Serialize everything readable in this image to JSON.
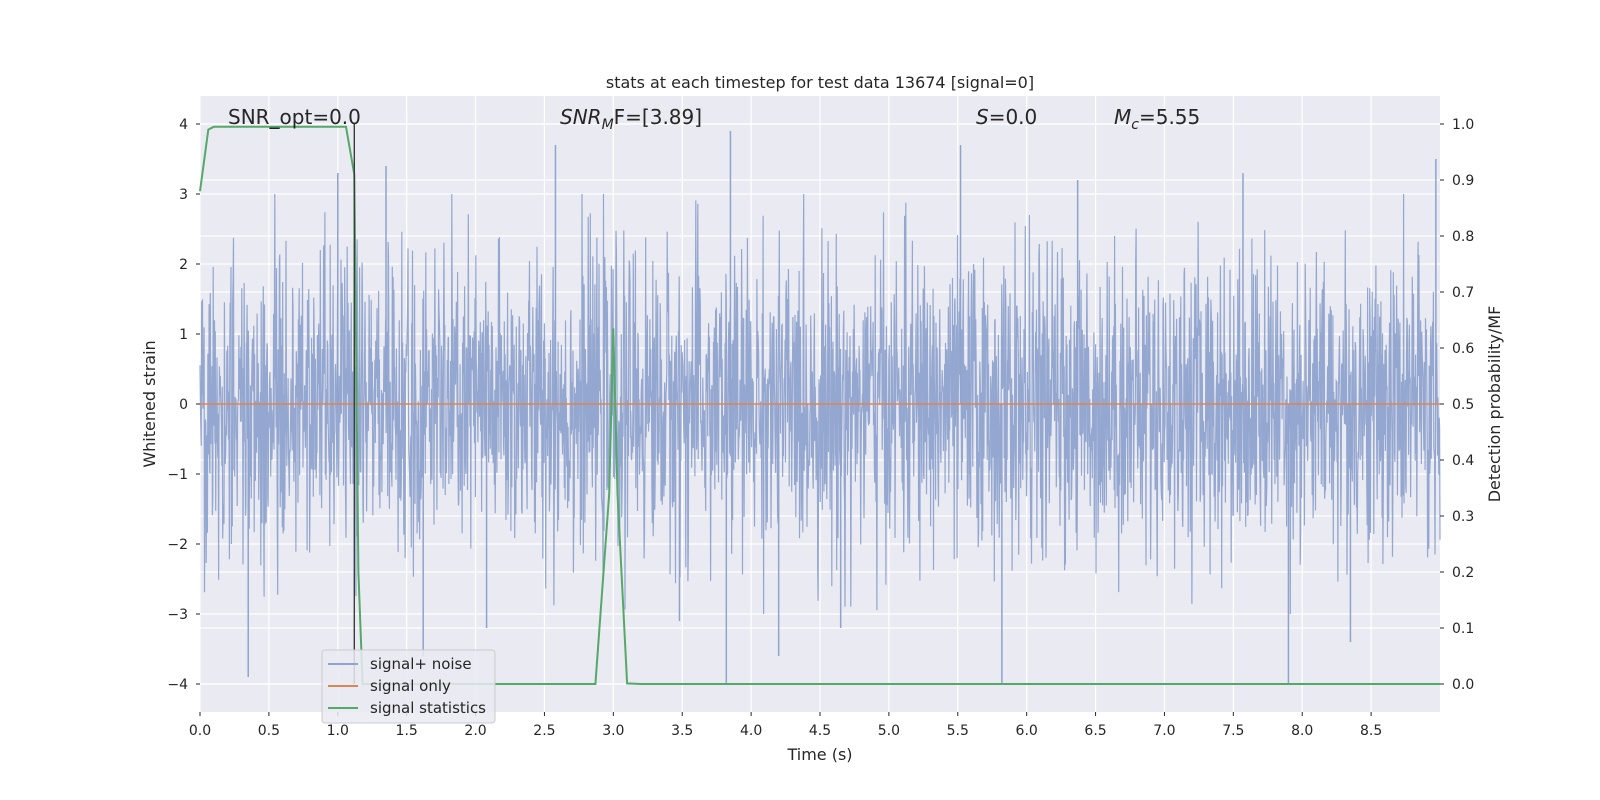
{
  "chart_data": {
    "type": "line",
    "title": "stats at each timestep for test data 13674 [signal=0]",
    "xlabel": "Time (s)",
    "ylabel_left": "Whitened strain",
    "ylabel_right": "Detection probability/MF",
    "xlim": [
      0.0,
      9.0
    ],
    "ylim_left": [
      -4.4,
      4.4
    ],
    "ylim_right": [
      -0.05,
      1.05
    ],
    "grid": true,
    "xticks": [
      "0.0",
      "0.5",
      "1.0",
      "1.5",
      "2.0",
      "2.5",
      "3.0",
      "3.5",
      "4.0",
      "4.5",
      "5.0",
      "5.5",
      "6.0",
      "6.5",
      "7.0",
      "7.5",
      "8.0",
      "8.5"
    ],
    "yticks_left": [
      "−4",
      "−3",
      "−2",
      "−1",
      "0",
      "1",
      "2",
      "3",
      "4"
    ],
    "yticks_right": [
      "0.0",
      "0.1",
      "0.2",
      "0.3",
      "0.4",
      "0.5",
      "0.6",
      "0.7",
      "0.8",
      "0.9",
      "1.0"
    ],
    "annotations": {
      "snr_opt": "SNR_opt=0.0",
      "snr_mf_sym": "SNR",
      "snr_mf_sub": "M",
      "snr_mf_rest": "F=[3.89]",
      "s_sym": "S",
      "s_rest": "=0.0",
      "mc_sym": "M",
      "mc_sub": "c",
      "mc_rest": "=5.55"
    },
    "legend": {
      "placement": "lower-left",
      "entries": [
        "signal+ noise",
        "signal only",
        "signal statistics"
      ]
    },
    "series": [
      {
        "name": "signal+ noise",
        "axis": "left",
        "color": "#8fa3cd",
        "description_values": "white-noise strain samples, mostly within ±2",
        "spikes": [
          {
            "x": 0.35,
            "y": -3.9
          },
          {
            "x": 1.0,
            "y": 3.3
          },
          {
            "x": 1.35,
            "y": 3.4
          },
          {
            "x": 1.62,
            "y": -3.6
          },
          {
            "x": 2.08,
            "y": -3.2
          },
          {
            "x": 2.58,
            "y": 3.7
          },
          {
            "x": 3.48,
            "y": -3.1
          },
          {
            "x": 3.85,
            "y": 3.9
          },
          {
            "x": 3.82,
            "y": -4.0
          },
          {
            "x": 4.2,
            "y": -3.6
          },
          {
            "x": 4.65,
            "y": -3.2
          },
          {
            "x": 5.52,
            "y": 3.7
          },
          {
            "x": 5.82,
            "y": -4.0
          },
          {
            "x": 6.37,
            "y": 3.2
          },
          {
            "x": 7.57,
            "y": 3.3
          },
          {
            "x": 7.9,
            "y": -4.0
          },
          {
            "x": 8.35,
            "y": -3.4
          },
          {
            "x": 8.97,
            "y": 3.5
          }
        ]
      },
      {
        "name": "signal only",
        "axis": "left",
        "color": "#dd8452",
        "x": [
          0.0,
          9.0
        ],
        "y": [
          0.0,
          0.0
        ]
      },
      {
        "name": "signal statistics",
        "axis": "right",
        "color": "#55a868",
        "x": [
          0.0,
          0.06,
          0.1,
          0.2,
          0.4,
          0.6,
          0.8,
          1.0,
          1.06,
          1.12,
          1.15,
          1.18,
          1.25,
          1.5,
          2.0,
          2.5,
          2.87,
          2.97,
          3.0,
          3.03,
          3.1,
          3.2,
          4.0,
          5.0,
          6.0,
          7.0,
          8.0,
          9.0
        ],
        "y": [
          0.88,
          0.99,
          0.995,
          0.995,
          0.995,
          0.995,
          0.995,
          0.995,
          0.995,
          0.91,
          0.2,
          0.0,
          0.0,
          0.0,
          0.0,
          0.0,
          0.0,
          0.34,
          0.635,
          0.34,
          0.001,
          0.0,
          0.0,
          0.0,
          0.0,
          0.0,
          0.0,
          0.0
        ]
      }
    ],
    "vertical_marker": {
      "x": 1.12,
      "color": "#3c3c3c"
    }
  }
}
